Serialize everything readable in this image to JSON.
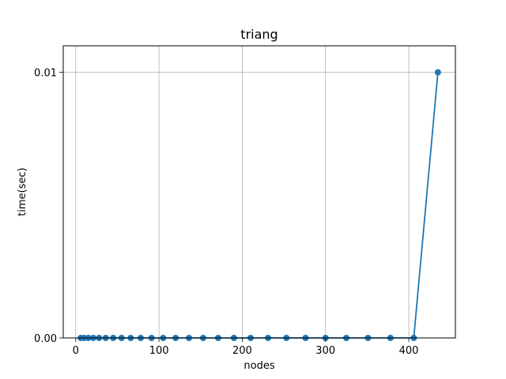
{
  "chart_data": {
    "type": "line",
    "title": "triang",
    "xlabel": "nodes",
    "ylabel": "time(sec)",
    "xlim": [
      -15,
      456
    ],
    "ylim": [
      0,
      0.011
    ],
    "xticks": [
      0,
      100,
      200,
      300,
      400
    ],
    "xtick_labels": [
      "0",
      "100",
      "200",
      "300",
      "400"
    ],
    "yticks": [
      0,
      0.01
    ],
    "ytick_labels": [
      "0.00",
      "0.01"
    ],
    "grid": true,
    "color": "#1f77b4",
    "series": [
      {
        "x": [
          6,
          10,
          15,
          21,
          28,
          36,
          45,
          55,
          66,
          78,
          91,
          105,
          120,
          136,
          153,
          171,
          190,
          210,
          231,
          253,
          276,
          300,
          325,
          351,
          378,
          406,
          435
        ],
        "y": [
          0,
          0,
          0,
          0,
          0,
          0,
          0,
          0,
          0,
          0,
          0,
          0,
          0,
          0,
          0,
          0,
          0,
          0,
          0,
          0,
          0,
          0,
          0,
          0,
          0,
          0,
          0.01
        ]
      }
    ]
  }
}
